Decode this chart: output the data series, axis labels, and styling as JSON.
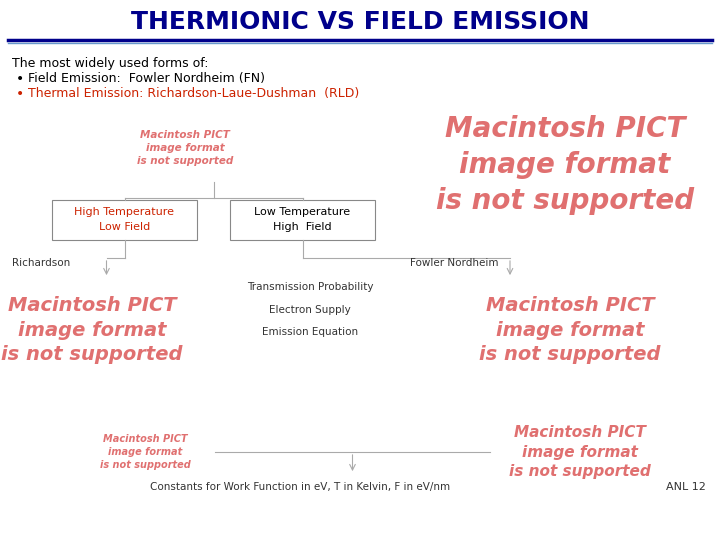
{
  "title": "THERMIONIC VS FIELD EMISSION",
  "title_color": "#00008B",
  "title_fontsize": 18,
  "bg_color": "#FFFFFF",
  "header_line_color": "#00008B",
  "header_line2_color": "#6699CC",
  "bullet_text_1": "The most widely used forms of:",
  "bullet_1": "Field Emission:  Fowler Nordheim (FN)",
  "bullet_1_color": "#000000",
  "bullet_2": "Thermal Emission: Richardson-Laue-Dushman  (RLD)",
  "bullet_2_color": "#CC2200",
  "box1_line1": "High Temperature",
  "box1_line2": "Low Field",
  "box1_text_color": "#CC2200",
  "box2_line1": "Low Temperature",
  "box2_line2": "High  Field",
  "box2_text_color": "#000000",
  "label_left": "Richardson",
  "label_right": "Fowler Nordheim",
  "label_color": "#333333",
  "center_labels": [
    "Transmission Probability",
    "Electron Supply",
    "Emission Equation"
  ],
  "center_label_color": "#333333",
  "bottom_text": "Constants for Work Function in eV, T in Kelvin, F in eV/nm",
  "bottom_right": "ANL 12",
  "pict_color": "#E07070",
  "line_color": "#AAAAAA",
  "arrow_color": "#AAAAAA"
}
